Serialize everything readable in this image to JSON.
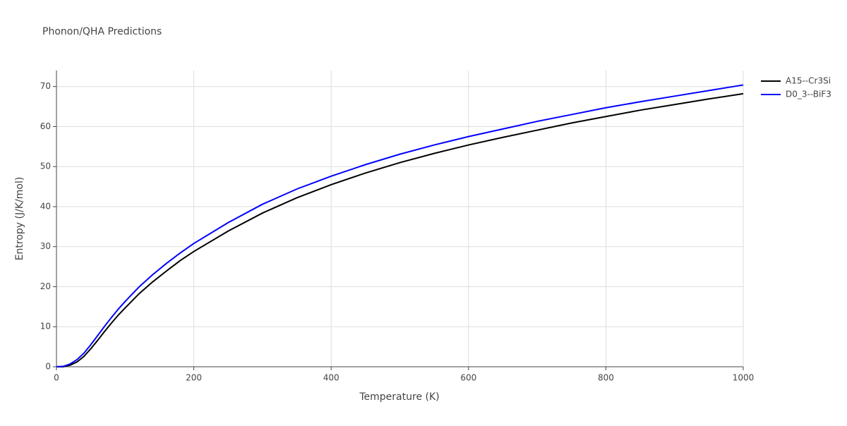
{
  "chart_data": {
    "type": "line",
    "title": "Phonon/QHA Predictions",
    "x_label": "Temperature (K)",
    "y_label": "Entropy (J/K/mol)",
    "x": [
      0,
      10,
      20,
      30,
      40,
      50,
      60,
      70,
      80,
      90,
      100,
      120,
      140,
      160,
      180,
      200,
      250,
      300,
      350,
      400,
      450,
      500,
      550,
      600,
      650,
      700,
      750,
      800,
      850,
      900,
      950,
      1000
    ],
    "series": [
      {
        "name": "A15--Cr3Si",
        "color": "#000000",
        "values": [
          0,
          0,
          0.4,
          1.2,
          2.6,
          4.5,
          6.6,
          8.8,
          10.9,
          12.9,
          14.7,
          18.2,
          21.2,
          23.9,
          26.5,
          28.8,
          33.9,
          38.4,
          42.2,
          45.5,
          48.4,
          51,
          53.3,
          55.4,
          57.3,
          59.1,
          60.9,
          62.5,
          64.1,
          65.5,
          66.9,
          68.2
        ]
      },
      {
        "name": "D0_3--BiF3",
        "color": "#0000ff",
        "values": [
          0,
          0.1,
          0.7,
          1.8,
          3.4,
          5.5,
          7.8,
          10.1,
          12.3,
          14.4,
          16.3,
          19.9,
          23,
          25.8,
          28.4,
          30.8,
          36,
          40.6,
          44.4,
          47.6,
          50.5,
          53.1,
          55.4,
          57.5,
          59.4,
          61.3,
          63,
          64.7,
          66.2,
          67.6,
          69,
          70.4
        ]
      }
    ],
    "xlim": [
      0,
      1000
    ],
    "xticks": [
      0,
      200,
      400,
      600,
      800,
      1000
    ],
    "ylim": [
      0,
      74
    ],
    "yticks": [
      0,
      10,
      20,
      30,
      40,
      50,
      60,
      70
    ],
    "grid": true,
    "legend": "top-right"
  }
}
